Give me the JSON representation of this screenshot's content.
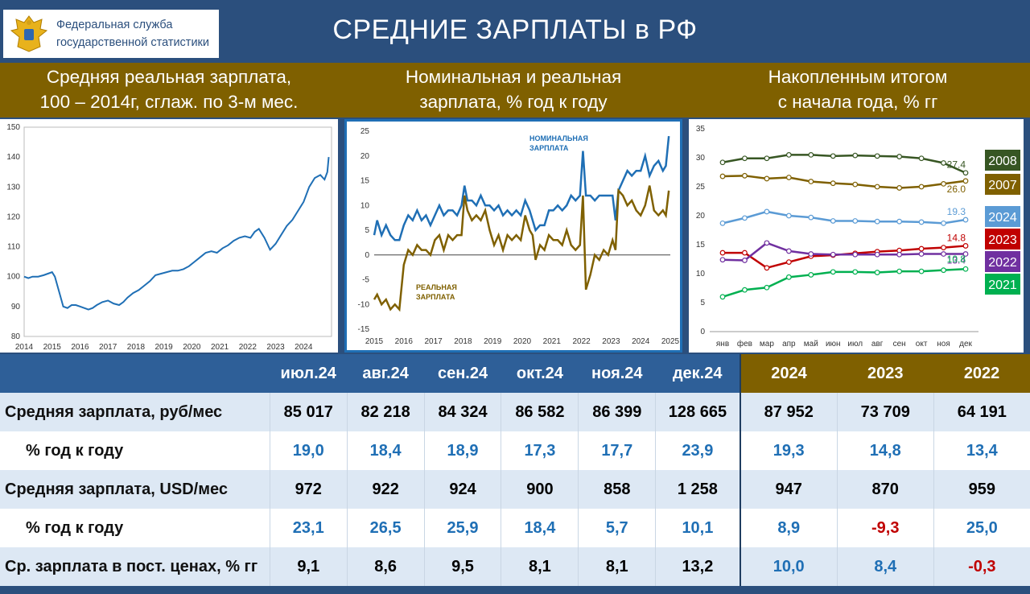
{
  "header": {
    "logo_line1": "Федеральная служба",
    "logo_line2": "государственной статистики",
    "title": "СРЕДНИЕ ЗАРПЛАТЫ в РФ"
  },
  "colors": {
    "navy": "#2b4f7d",
    "gold": "#7f6000",
    "blue_line": "#1f6fb5",
    "gold_line": "#7f6000",
    "accent_red": "#c00000"
  },
  "section_titles": {
    "left": [
      "Средняя реальная зарплата,",
      "100 – 2014г, сглаж. по 3-м мес."
    ],
    "middle": [
      "Номинальная и реальная",
      "зарплата, % год к году"
    ],
    "right": [
      "Накопленным итогом",
      "с начала года, % гг"
    ]
  },
  "chart_data": [
    {
      "type": "line",
      "ylim": [
        80,
        150
      ],
      "yticks": [
        "80",
        "90",
        "100",
        "110",
        "120",
        "130",
        "140",
        "150"
      ],
      "xticks": [
        "2014",
        "2015",
        "2016",
        "2017",
        "2018",
        "2019",
        "2020",
        "2021",
        "2022",
        "2023",
        "2024"
      ],
      "series": [
        {
          "x": [
            2014.0,
            2014.15,
            2014.3,
            2014.5,
            2014.7,
            2014.85,
            2015.0,
            2015.1,
            2015.25,
            2015.4,
            2015.55,
            2015.7,
            2015.85,
            2016.0,
            2016.15,
            2016.3,
            2016.45,
            2016.6,
            2016.8,
            2017.0,
            2017.2,
            2017.4,
            2017.55,
            2017.7,
            2017.9,
            2018.1,
            2018.3,
            2018.5,
            2018.7,
            2018.9,
            2019.1,
            2019.3,
            2019.5,
            2019.7,
            2019.9,
            2020.1,
            2020.3,
            2020.5,
            2020.7,
            2020.9,
            2021.1,
            2021.3,
            2021.5,
            2021.7,
            2021.9,
            2022.1,
            2022.25,
            2022.4,
            2022.6,
            2022.8,
            2023.0,
            2023.2,
            2023.4,
            2023.6,
            2023.8,
            2024.0,
            2024.2,
            2024.4,
            2024.6,
            2024.75,
            2024.85,
            2024.9
          ],
          "y": [
            100,
            99.5,
            100,
            100,
            100.5,
            101,
            101.5,
            100,
            95,
            90,
            89.5,
            90.5,
            90.5,
            90,
            89.5,
            89,
            89.5,
            90.5,
            91.5,
            92,
            91,
            90.5,
            91.5,
            93,
            94.5,
            95.5,
            97,
            98.5,
            100.5,
            101,
            101.5,
            102,
            102,
            102.5,
            103.5,
            105,
            106.5,
            108,
            108.5,
            108,
            109.5,
            110.5,
            112,
            113,
            113.5,
            113,
            115,
            116,
            113,
            109,
            111,
            114,
            117,
            119,
            122,
            125,
            130,
            133,
            134,
            132.5,
            135,
            140
          ]
        }
      ]
    },
    {
      "type": "line",
      "ylim": [
        -15,
        25
      ],
      "yticks": [
        "-15",
        "-10",
        "-5",
        "0",
        "5",
        "10",
        "15",
        "20",
        "25"
      ],
      "xticks": [
        "2015",
        "2016",
        "2017",
        "2018",
        "2019",
        "2020",
        "2021",
        "2022",
        "2023",
        "2024",
        "2025"
      ],
      "series": [
        {
          "name": "НОМИНАЛЬНАЯ ЗАРПЛАТА",
          "color": "#1f6fb5",
          "x": [
            2015.0,
            2015.1,
            2015.25,
            2015.4,
            2015.55,
            2015.7,
            2015.85,
            2016.0,
            2016.15,
            2016.3,
            2016.45,
            2016.6,
            2016.75,
            2016.9,
            2017.05,
            2017.2,
            2017.35,
            2017.5,
            2017.65,
            2017.8,
            2017.95,
            2018.05,
            2018.15,
            2018.3,
            2018.45,
            2018.6,
            2018.75,
            2018.9,
            2019.05,
            2019.2,
            2019.35,
            2019.5,
            2019.65,
            2019.8,
            2019.95,
            2020.1,
            2020.25,
            2020.35,
            2020.45,
            2020.6,
            2020.75,
            2020.9,
            2021.05,
            2021.2,
            2021.35,
            2021.5,
            2021.65,
            2021.8,
            2021.95,
            2022.05,
            2022.15,
            2022.3,
            2022.45,
            2022.6,
            2022.75,
            2022.9,
            2023.05,
            2023.15,
            2023.25,
            2023.4,
            2023.55,
            2023.7,
            2023.85,
            2024.0,
            2024.15,
            2024.3,
            2024.45,
            2024.6,
            2024.75,
            2024.85,
            2024.95
          ],
          "y": [
            4,
            7,
            4,
            6,
            4,
            3,
            3,
            6,
            8,
            7,
            9,
            7,
            8,
            6,
            8,
            10,
            8,
            9,
            9,
            8,
            10,
            14,
            11,
            11,
            10,
            12,
            10,
            10,
            9,
            10,
            8,
            9,
            8,
            9,
            8,
            11,
            9,
            7,
            5,
            6,
            6,
            9,
            9,
            10,
            9,
            10,
            12,
            11,
            12,
            21,
            12,
            12,
            11,
            12,
            12,
            12,
            12,
            7,
            13,
            15,
            17,
            16,
            17,
            17,
            20,
            16,
            18,
            19,
            17,
            18,
            24
          ]
        },
        {
          "name": "РЕАЛЬНАЯ ЗАРПЛАТА",
          "color": "#7f6000",
          "x": [
            2015.0,
            2015.1,
            2015.25,
            2015.4,
            2015.55,
            2015.7,
            2015.85,
            2016.0,
            2016.15,
            2016.3,
            2016.45,
            2016.6,
            2016.75,
            2016.9,
            2017.05,
            2017.2,
            2017.35,
            2017.5,
            2017.65,
            2017.8,
            2017.95,
            2018.05,
            2018.15,
            2018.3,
            2018.45,
            2018.6,
            2018.75,
            2018.9,
            2019.05,
            2019.2,
            2019.35,
            2019.5,
            2019.65,
            2019.8,
            2019.95,
            2020.1,
            2020.25,
            2020.35,
            2020.45,
            2020.6,
            2020.75,
            2020.9,
            2021.05,
            2021.2,
            2021.35,
            2021.5,
            2021.65,
            2021.8,
            2021.95,
            2022.05,
            2022.15,
            2022.3,
            2022.45,
            2022.6,
            2022.75,
            2022.9,
            2023.05,
            2023.15,
            2023.25,
            2023.4,
            2023.55,
            2023.7,
            2023.85,
            2024.0,
            2024.15,
            2024.3,
            2024.45,
            2024.6,
            2024.75,
            2024.85,
            2024.95
          ],
          "y": [
            -9,
            -8,
            -10,
            -9,
            -11,
            -10,
            -11,
            -2,
            1,
            0,
            2,
            1,
            1,
            0,
            3,
            4,
            1,
            4,
            3,
            4,
            4,
            12,
            9,
            7,
            8,
            7,
            9,
            5,
            2,
            4,
            1,
            4,
            3,
            4,
            3,
            8,
            5,
            4,
            -1,
            2,
            1,
            4,
            3,
            3,
            2,
            5,
            2,
            1,
            2,
            12,
            -7,
            -4,
            0,
            -1,
            1,
            0,
            3,
            1,
            13,
            12,
            10,
            11,
            9,
            8,
            10,
            14,
            9,
            8,
            9,
            8,
            13
          ]
        }
      ]
    },
    {
      "type": "line",
      "ylim": [
        0,
        35
      ],
      "yticks": [
        "0",
        "5",
        "10",
        "15",
        "20",
        "25",
        "30",
        "35"
      ],
      "categories": [
        "янв",
        "фев",
        "мар",
        "апр",
        "май",
        "июн",
        "июл",
        "авг",
        "сен",
        "окт",
        "ноя",
        "дек"
      ],
      "series": [
        {
          "name": "2008",
          "color": "#375623",
          "values": [
            29.2,
            29.9,
            29.9,
            30.5,
            30.5,
            30.3,
            30.4,
            30.3,
            30.2,
            29.9,
            29.1,
            27.4
          ],
          "label": "27.4"
        },
        {
          "name": "2007",
          "color": "#7f6000",
          "values": [
            26.8,
            26.9,
            26.4,
            26.6,
            25.9,
            25.6,
            25.4,
            25.0,
            24.8,
            25.0,
            25.5,
            26.0
          ],
          "label": "26.0"
        },
        {
          "name": "2024",
          "color": "#5b9bd5",
          "values": [
            18.7,
            19.6,
            20.7,
            20.0,
            19.7,
            19.1,
            19.1,
            19.0,
            19.0,
            18.9,
            18.7,
            19.3
          ],
          "label": "19.3"
        },
        {
          "name": "2023",
          "color": "#c00000",
          "values": [
            13.6,
            13.6,
            11.0,
            12.0,
            13.0,
            13.2,
            13.5,
            13.8,
            14.0,
            14.3,
            14.5,
            14.8
          ],
          "label": "14.8"
        },
        {
          "name": "2022",
          "color": "#7030a0",
          "values": [
            12.4,
            12.3,
            15.3,
            13.9,
            13.4,
            13.3,
            13.3,
            13.3,
            13.3,
            13.4,
            13.4,
            13.4
          ],
          "label": "13.4"
        },
        {
          "name": "2021",
          "color": "#00b050",
          "values": [
            6.0,
            7.2,
            7.6,
            9.4,
            9.8,
            10.3,
            10.3,
            10.2,
            10.4,
            10.4,
            10.6,
            10.8
          ],
          "label": "10.8"
        }
      ]
    }
  ],
  "table": {
    "columns": [
      "",
      "июл.24",
      "авг.24",
      "сен.24",
      "окт.24",
      "ноя.24",
      "дек.24",
      "2024",
      "2023",
      "2022"
    ],
    "rows": [
      {
        "label": "Средняя зарплата, руб/мес",
        "values": [
          "85 017",
          "82 218",
          "84 324",
          "86 582",
          "86 399",
          "128 665",
          "87 952",
          "73 709",
          "64 191"
        ]
      },
      {
        "label": "% год к году",
        "values": [
          "19,0",
          "18,4",
          "18,9",
          "17,3",
          "17,7",
          "23,9",
          "19,3",
          "14,8",
          "13,4"
        ]
      },
      {
        "label": "Средняя зарплата, USD/мес",
        "values": [
          "972",
          "922",
          "924",
          "900",
          "858",
          "1 258",
          "947",
          "870",
          "959"
        ]
      },
      {
        "label": "% год к году",
        "values": [
          "23,1",
          "26,5",
          "25,9",
          "18,4",
          "5,7",
          "10,1",
          "8,9",
          "-9,3",
          "25,0"
        ]
      },
      {
        "label": "Ср. зарплата в пост. ценах, % гг",
        "values": [
          "9,1",
          "8,6",
          "9,5",
          "8,1",
          "8,1",
          "13,2",
          "10,0",
          "8,4",
          "-0,3"
        ]
      }
    ]
  }
}
